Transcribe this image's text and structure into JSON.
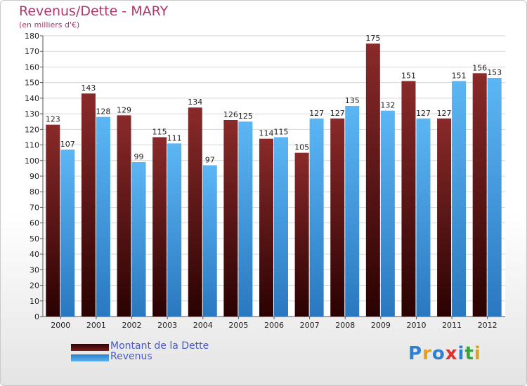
{
  "header": {
    "title": "Revenus/Dette - MARY",
    "subtitle": "(en milliers d'€)"
  },
  "logo": {
    "text": "Proxiti"
  },
  "colors": {
    "dette": "#7a1e1e",
    "revenus": "#4aa3e8",
    "title": "#b0356a",
    "legend_text": "#4a59c9"
  },
  "chart_data": {
    "type": "bar",
    "categories": [
      "2000",
      "2001",
      "2002",
      "2003",
      "2004",
      "2005",
      "2006",
      "2007",
      "2008",
      "2009",
      "2010",
      "2011",
      "2012"
    ],
    "series": [
      {
        "name": "Montant de la Dette",
        "values": [
          123,
          143,
          129,
          115,
          134,
          126,
          114,
          105,
          127,
          175,
          151,
          127,
          156
        ]
      },
      {
        "name": "Revenus",
        "values": [
          107,
          128,
          99,
          111,
          97,
          125,
          115,
          127,
          135,
          132,
          127,
          151,
          153
        ]
      }
    ],
    "ylim": [
      0,
      180
    ],
    "yticks": [
      0,
      10,
      20,
      30,
      40,
      50,
      60,
      70,
      80,
      90,
      100,
      110,
      120,
      130,
      140,
      150,
      160,
      170,
      180
    ],
    "grid": true,
    "legend": "bottom-left"
  }
}
